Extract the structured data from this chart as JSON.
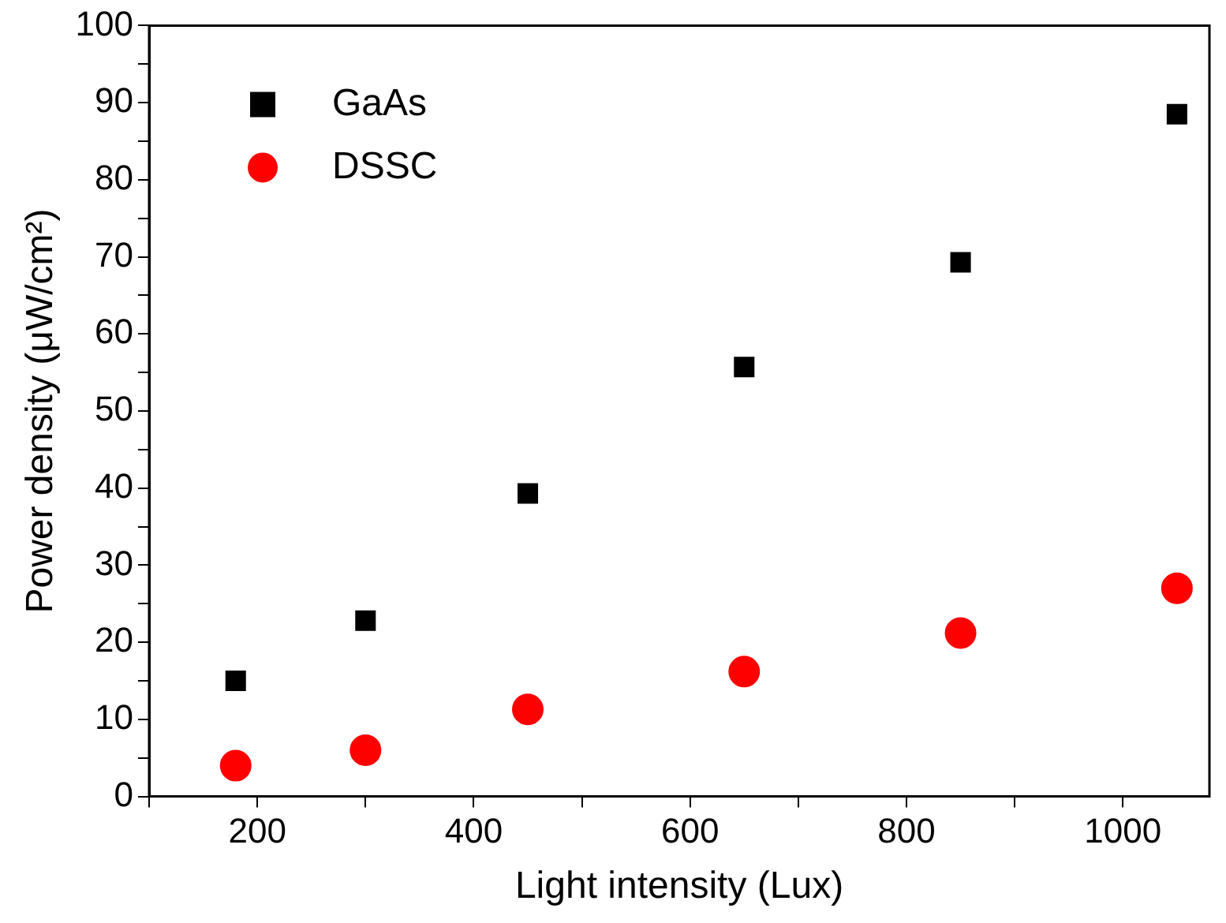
{
  "chart_data": {
    "type": "scatter",
    "xlabel": "Light intensity (Lux)",
    "ylabel": "Power density (μW/cm²)",
    "x": [
      180,
      300,
      450,
      650,
      850,
      1050
    ],
    "series": [
      {
        "name": "GaAs",
        "color": "#000000",
        "marker": "square",
        "values": [
          15,
          22.8,
          39.3,
          55.7,
          69.3,
          88.5
        ]
      },
      {
        "name": "DSSC",
        "color": "#ff0000",
        "marker": "circle",
        "values": [
          4,
          6,
          11.3,
          16.2,
          21.2,
          27
        ]
      }
    ],
    "xlim": [
      100,
      1080
    ],
    "xticks": [
      {
        "value": 100,
        "label": null
      },
      200,
      {
        "value": 300,
        "label": null
      },
      400,
      {
        "value": 500,
        "label": null
      },
      600,
      {
        "value": 700,
        "label": null
      },
      800,
      {
        "value": 900,
        "label": null
      },
      1000
    ],
    "ylim": [
      0,
      100
    ],
    "yticks": [
      0,
      {
        "value": 5,
        "label": null
      },
      10,
      {
        "value": 15,
        "label": null
      },
      20,
      {
        "value": 25,
        "label": null
      },
      30,
      {
        "value": 35,
        "label": null
      },
      40,
      {
        "value": 45,
        "label": null
      },
      50,
      {
        "value": 55,
        "label": null
      },
      60,
      {
        "value": 65,
        "label": null
      },
      70,
      {
        "value": 75,
        "label": null
      },
      80,
      {
        "value": 85,
        "label": null
      },
      90,
      {
        "value": 95,
        "label": null
      },
      100
    ],
    "grid": false,
    "legend": "top left"
  }
}
